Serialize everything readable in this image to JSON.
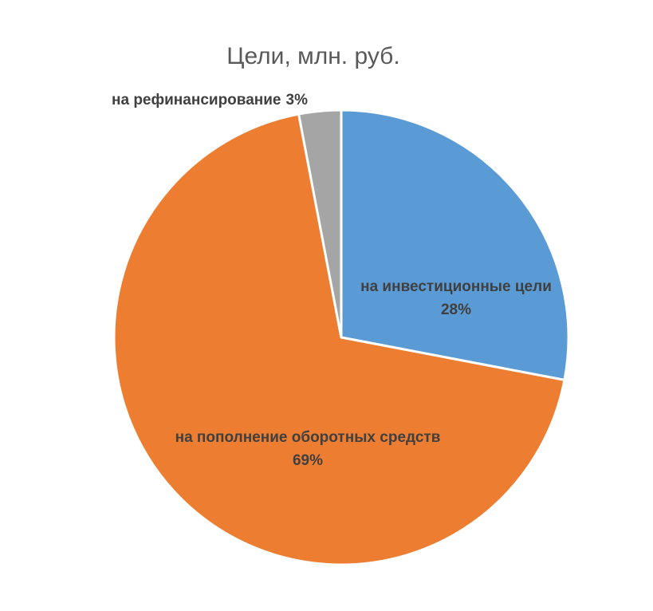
{
  "chart_data": {
    "type": "pie",
    "title": "Цели, млн. руб.",
    "categories": [
      "на инвестиционные цели",
      "на пополнение оборотных средств",
      "на рефинансирование"
    ],
    "values": [
      28,
      69,
      3
    ],
    "value_labels": [
      "28%",
      "69%",
      "3%"
    ],
    "colors": [
      "#5b9bd5",
      "#ed7d31",
      "#a5a5a5"
    ]
  }
}
